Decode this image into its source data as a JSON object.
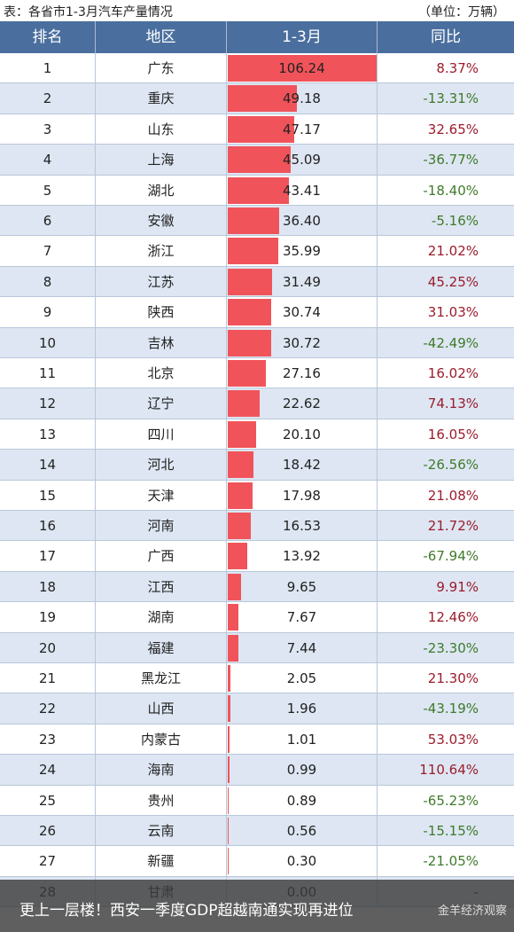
{
  "title": "表：各省市1-3月汽车产量情况",
  "unit": "（单位：万辆）",
  "headers": {
    "rank": "排名",
    "region": "地区",
    "production": "1-3月",
    "yoy": "同比"
  },
  "colors": {
    "header_bg": "#4a6f9e",
    "bar": "#f0545a",
    "row_alt": "#dde6f2",
    "positive": "#9b1c2c",
    "negative": "#3f7a2b"
  },
  "chart_data": {
    "type": "table",
    "columns": [
      "排名",
      "地区",
      "1-3月",
      "同比"
    ],
    "rows": [
      {
        "rank": "1",
        "region": "广东",
        "value": 106.24,
        "value_text": "106.24",
        "yoy": "8.37%"
      },
      {
        "rank": "2",
        "region": "重庆",
        "value": 49.18,
        "value_text": "49.18",
        "yoy": "-13.31%"
      },
      {
        "rank": "3",
        "region": "山东",
        "value": 47.17,
        "value_text": "47.17",
        "yoy": "32.65%"
      },
      {
        "rank": "4",
        "region": "上海",
        "value": 45.09,
        "value_text": "45.09",
        "yoy": "-36.77%"
      },
      {
        "rank": "5",
        "region": "湖北",
        "value": 43.41,
        "value_text": "43.41",
        "yoy": "-18.40%"
      },
      {
        "rank": "6",
        "region": "安徽",
        "value": 36.4,
        "value_text": "36.40",
        "yoy": "-5.16%"
      },
      {
        "rank": "7",
        "region": "浙江",
        "value": 35.99,
        "value_text": "35.99",
        "yoy": "21.02%"
      },
      {
        "rank": "8",
        "region": "江苏",
        "value": 31.49,
        "value_text": "31.49",
        "yoy": "45.25%"
      },
      {
        "rank": "9",
        "region": "陕西",
        "value": 30.74,
        "value_text": "30.74",
        "yoy": "31.03%"
      },
      {
        "rank": "10",
        "region": "吉林",
        "value": 30.72,
        "value_text": "30.72",
        "yoy": "-42.49%"
      },
      {
        "rank": "11",
        "region": "北京",
        "value": 27.16,
        "value_text": "27.16",
        "yoy": "16.02%"
      },
      {
        "rank": "12",
        "region": "辽宁",
        "value": 22.62,
        "value_text": "22.62",
        "yoy": "74.13%"
      },
      {
        "rank": "13",
        "region": "四川",
        "value": 20.1,
        "value_text": "20.10",
        "yoy": "16.05%"
      },
      {
        "rank": "14",
        "region": "河北",
        "value": 18.42,
        "value_text": "18.42",
        "yoy": "-26.56%"
      },
      {
        "rank": "15",
        "region": "天津",
        "value": 17.98,
        "value_text": "17.98",
        "yoy": "21.08%"
      },
      {
        "rank": "16",
        "region": "河南",
        "value": 16.53,
        "value_text": "16.53",
        "yoy": "21.72%"
      },
      {
        "rank": "17",
        "region": "广西",
        "value": 13.92,
        "value_text": "13.92",
        "yoy": "-67.94%"
      },
      {
        "rank": "18",
        "region": "江西",
        "value": 9.65,
        "value_text": "9.65",
        "yoy": "9.91%"
      },
      {
        "rank": "19",
        "region": "湖南",
        "value": 7.67,
        "value_text": "7.67",
        "yoy": "12.46%"
      },
      {
        "rank": "20",
        "region": "福建",
        "value": 7.44,
        "value_text": "7.44",
        "yoy": "-23.30%"
      },
      {
        "rank": "21",
        "region": "黑龙江",
        "value": 2.05,
        "value_text": "2.05",
        "yoy": "21.30%"
      },
      {
        "rank": "22",
        "region": "山西",
        "value": 1.96,
        "value_text": "1.96",
        "yoy": "-43.19%"
      },
      {
        "rank": "23",
        "region": "内蒙古",
        "value": 1.01,
        "value_text": "1.01",
        "yoy": "53.03%"
      },
      {
        "rank": "24",
        "region": "海南",
        "value": 0.99,
        "value_text": "0.99",
        "yoy": "110.64%"
      },
      {
        "rank": "25",
        "region": "贵州",
        "value": 0.89,
        "value_text": "0.89",
        "yoy": "-65.23%"
      },
      {
        "rank": "26",
        "region": "云南",
        "value": 0.56,
        "value_text": "0.56",
        "yoy": "-15.15%"
      },
      {
        "rank": "27",
        "region": "新疆",
        "value": 0.3,
        "value_text": "0.30",
        "yoy": "-21.05%"
      },
      {
        "rank": "28",
        "region": "甘肃",
        "value": 0.0,
        "value_text": "0.00",
        "yoy": "-"
      }
    ]
  },
  "caption": {
    "text": "更上一层楼！西安一季度GDP超越南通实现再进位",
    "watermark": "金羊经济观察"
  }
}
